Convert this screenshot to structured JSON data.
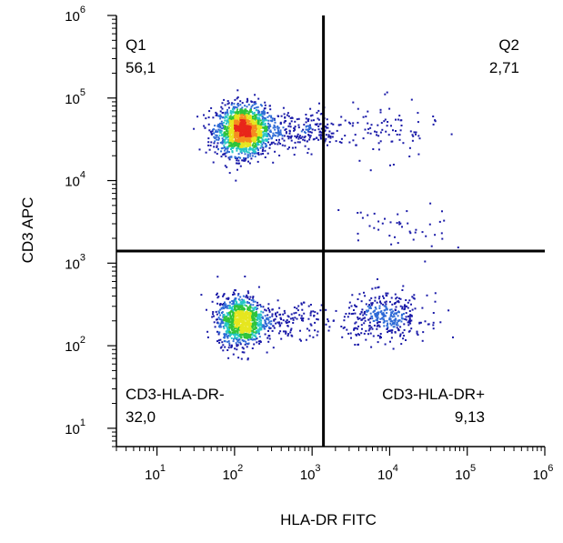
{
  "chart_data": {
    "type": "scatter",
    "subtype": "flow-cytometry-density-dot-plot",
    "xlabel": "HLA-DR FITC",
    "ylabel": "CD3 APC",
    "x_scale": "log",
    "y_scale": "log",
    "xlim": [
      3,
      1000000
    ],
    "ylim": [
      6,
      1000000
    ],
    "x_ticks": [
      {
        "base": "10",
        "exp": "1",
        "value": 10
      },
      {
        "base": "10",
        "exp": "2",
        "value": 100
      },
      {
        "base": "10",
        "exp": "3",
        "value": 1000
      },
      {
        "base": "10",
        "exp": "4",
        "value": 10000
      },
      {
        "base": "10",
        "exp": "5",
        "value": 100000
      },
      {
        "base": "10",
        "exp": "6",
        "value": 1000000
      }
    ],
    "y_ticks": [
      {
        "base": "10",
        "exp": "1",
        "value": 10
      },
      {
        "base": "10",
        "exp": "2",
        "value": 100
      },
      {
        "base": "10",
        "exp": "3",
        "value": 1000
      },
      {
        "base": "10",
        "exp": "4",
        "value": 10000
      },
      {
        "base": "10",
        "exp": "5",
        "value": 100000
      },
      {
        "base": "10",
        "exp": "6",
        "value": 1000000
      }
    ],
    "quadrant_gate": {
      "x": 1400,
      "y": 1400
    },
    "quadrants": [
      {
        "id": "q1",
        "name": "Q1",
        "value": "56,1",
        "position": "top-left"
      },
      {
        "id": "q2",
        "name": "Q2",
        "value": "2,71",
        "position": "top-right"
      },
      {
        "id": "q3",
        "name": "CD3-HLA-DR-",
        "value": "32,0",
        "position": "bottom-left"
      },
      {
        "id": "q4",
        "name": "CD3-HLA-DR+",
        "value": "9,13",
        "position": "bottom-right"
      }
    ],
    "populations": [
      {
        "center": [
          130,
          40000
        ],
        "spread": [
          0.17,
          0.15
        ],
        "count": 1700
      },
      {
        "center": [
          120,
          200
        ],
        "spread": [
          0.15,
          0.15
        ],
        "count": 1050
      },
      {
        "center": [
          9000,
          220
        ],
        "spread": [
          0.27,
          0.14
        ],
        "count": 380
      },
      {
        "center": [
          700,
          40000
        ],
        "spread": [
          0.3,
          0.12
        ],
        "count": 230
      },
      {
        "center": [
          8000,
          40000
        ],
        "spread": [
          0.35,
          0.17
        ],
        "count": 90
      },
      {
        "center": [
          12000,
          2500
        ],
        "spread": [
          0.35,
          0.18
        ],
        "count": 45
      },
      {
        "center": [
          500,
          200
        ],
        "spread": [
          0.28,
          0.1
        ],
        "count": 150
      }
    ],
    "density_colors": [
      "#1a1aa8",
      "#2f6bd6",
      "#26c6c6",
      "#2fc43a",
      "#e6e61f",
      "#f58c1e",
      "#e8261a"
    ],
    "grid": false,
    "legend": "none"
  }
}
